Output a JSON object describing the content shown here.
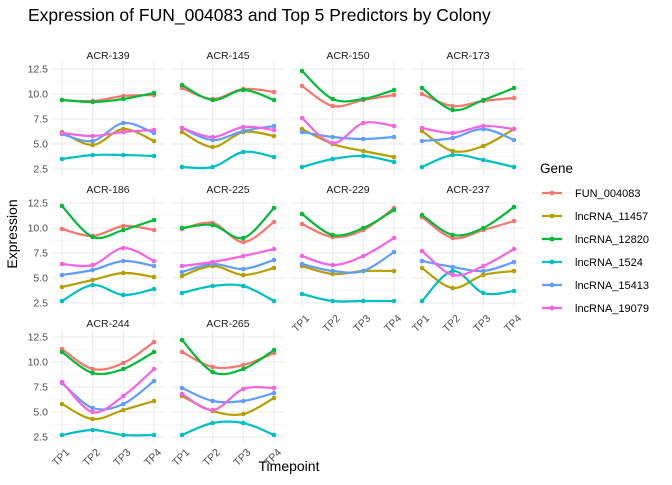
{
  "chart_data": {
    "type": "line",
    "title": "Expression of FUN_004083 and Top 5 Predictors by Colony",
    "xlabel": "Timepoint",
    "ylabel": "Expression",
    "legend_title": "Gene",
    "legend_position": "right",
    "grid": true,
    "facet_layout": "wrap 4 columns",
    "ylim": [
      2.0,
      13.2
    ],
    "y_ticks": [
      "2.5",
      "5.0",
      "7.5",
      "10.0",
      "12.5"
    ],
    "y_tick_values": [
      2.5,
      5.0,
      7.5,
      10.0,
      12.5
    ],
    "x_categories": [
      "TP1",
      "TP2",
      "TP3",
      "TP4"
    ],
    "genes": [
      {
        "name": "FUN_004083",
        "color": "#F8766D"
      },
      {
        "name": "lncRNA_11457",
        "color": "#B79F00"
      },
      {
        "name": "lncRNA_12820",
        "color": "#00BA38"
      },
      {
        "name": "lncRNA_1524",
        "color": "#00BFC4"
      },
      {
        "name": "lncRNA_15413",
        "color": "#619CFF"
      },
      {
        "name": "lncRNA_19079",
        "color": "#F564E3"
      }
    ],
    "panels": [
      {
        "colony": "ACR-139",
        "series": [
          {
            "gene": "FUN_004083",
            "values": [
              9.4,
              9.3,
              9.8,
              9.9
            ]
          },
          {
            "gene": "lncRNA_11457",
            "values": [
              6.2,
              4.9,
              6.5,
              5.3
            ]
          },
          {
            "gene": "lncRNA_12820",
            "values": [
              9.4,
              9.2,
              9.5,
              10.1
            ]
          },
          {
            "gene": "lncRNA_1524",
            "values": [
              3.5,
              3.9,
              3.9,
              3.8
            ]
          },
          {
            "gene": "lncRNA_15413",
            "values": [
              6.0,
              5.3,
              7.1,
              6.1
            ]
          },
          {
            "gene": "lncRNA_19079",
            "values": [
              6.1,
              5.8,
              6.2,
              6.4
            ]
          }
        ]
      },
      {
        "colony": "ACR-145",
        "series": [
          {
            "gene": "FUN_004083",
            "values": [
              10.6,
              9.5,
              10.5,
              10.2
            ]
          },
          {
            "gene": "lncRNA_11457",
            "values": [
              6.2,
              4.7,
              6.2,
              5.8
            ]
          },
          {
            "gene": "lncRNA_12820",
            "values": [
              10.9,
              9.4,
              10.4,
              9.4
            ]
          },
          {
            "gene": "lncRNA_1524",
            "values": [
              2.7,
              2.7,
              4.2,
              3.7
            ]
          },
          {
            "gene": "lncRNA_15413",
            "values": [
              6.6,
              5.4,
              6.3,
              6.8
            ]
          },
          {
            "gene": "lncRNA_19079",
            "values": [
              6.6,
              5.7,
              6.7,
              6.4
            ]
          }
        ]
      },
      {
        "colony": "ACR-150",
        "series": [
          {
            "gene": "FUN_004083",
            "values": [
              10.8,
              8.8,
              9.4,
              9.9
            ]
          },
          {
            "gene": "lncRNA_11457",
            "values": [
              6.5,
              5.0,
              4.3,
              3.7
            ]
          },
          {
            "gene": "lncRNA_12820",
            "values": [
              12.3,
              9.5,
              9.5,
              10.4
            ]
          },
          {
            "gene": "lncRNA_1524",
            "values": [
              2.7,
              3.5,
              3.8,
              3.2
            ]
          },
          {
            "gene": "lncRNA_15413",
            "values": [
              6.2,
              5.7,
              5.5,
              5.7
            ]
          },
          {
            "gene": "lncRNA_19079",
            "values": [
              7.6,
              5.1,
              7.1,
              6.8
            ]
          }
        ]
      },
      {
        "colony": "ACR-173",
        "series": [
          {
            "gene": "FUN_004083",
            "values": [
              10.0,
              8.8,
              9.3,
              9.6
            ]
          },
          {
            "gene": "lncRNA_11457",
            "values": [
              6.3,
              4.3,
              4.8,
              6.5
            ]
          },
          {
            "gene": "lncRNA_12820",
            "values": [
              10.6,
              8.4,
              9.4,
              10.6
            ]
          },
          {
            "gene": "lncRNA_1524",
            "values": [
              2.7,
              3.9,
              3.4,
              2.7
            ]
          },
          {
            "gene": "lncRNA_15413",
            "values": [
              5.3,
              5.6,
              6.5,
              5.4
            ]
          },
          {
            "gene": "lncRNA_19079",
            "values": [
              6.6,
              6.1,
              6.8,
              6.5
            ]
          }
        ]
      },
      {
        "colony": "ACR-186",
        "series": [
          {
            "gene": "FUN_004083",
            "values": [
              9.9,
              9.2,
              10.2,
              9.8
            ]
          },
          {
            "gene": "lncRNA_11457",
            "values": [
              4.1,
              4.8,
              5.5,
              5.1
            ]
          },
          {
            "gene": "lncRNA_12820",
            "values": [
              12.2,
              9.1,
              9.8,
              10.8
            ]
          },
          {
            "gene": "lncRNA_1524",
            "values": [
              2.7,
              4.3,
              3.3,
              3.9
            ]
          },
          {
            "gene": "lncRNA_15413",
            "values": [
              5.3,
              5.8,
              6.7,
              6.2
            ]
          },
          {
            "gene": "lncRNA_19079",
            "values": [
              6.4,
              6.3,
              8.0,
              6.7
            ]
          }
        ]
      },
      {
        "colony": "ACR-225",
        "series": [
          {
            "gene": "FUN_004083",
            "values": [
              9.9,
              10.5,
              8.6,
              10.6
            ]
          },
          {
            "gene": "lncRNA_11457",
            "values": [
              5.2,
              6.2,
              5.3,
              6.0
            ]
          },
          {
            "gene": "lncRNA_12820",
            "values": [
              10.0,
              10.3,
              9.0,
              12.0
            ]
          },
          {
            "gene": "lncRNA_1524",
            "values": [
              3.5,
              4.2,
              4.2,
              2.7
            ]
          },
          {
            "gene": "lncRNA_15413",
            "values": [
              5.6,
              6.4,
              5.9,
              6.8
            ]
          },
          {
            "gene": "lncRNA_19079",
            "values": [
              6.2,
              6.6,
              7.2,
              7.9
            ]
          }
        ]
      },
      {
        "colony": "ACR-229",
        "series": [
          {
            "gene": "FUN_004083",
            "values": [
              10.4,
              9.1,
              9.8,
              12.0
            ]
          },
          {
            "gene": "lncRNA_11457",
            "values": [
              6.2,
              5.4,
              5.7,
              5.7
            ]
          },
          {
            "gene": "lncRNA_12820",
            "values": [
              11.4,
              9.3,
              10.0,
              11.8
            ]
          },
          {
            "gene": "lncRNA_1524",
            "values": [
              3.4,
              2.7,
              2.7,
              2.7
            ]
          },
          {
            "gene": "lncRNA_15413",
            "values": [
              6.4,
              5.7,
              5.7,
              7.6
            ]
          },
          {
            "gene": "lncRNA_19079",
            "values": [
              7.2,
              6.3,
              7.2,
              9.0
            ]
          }
        ]
      },
      {
        "colony": "ACR-237",
        "series": [
          {
            "gene": "FUN_004083",
            "values": [
              11.1,
              9.0,
              9.8,
              10.7
            ]
          },
          {
            "gene": "lncRNA_11457",
            "values": [
              6.0,
              4.0,
              5.3,
              5.7
            ]
          },
          {
            "gene": "lncRNA_12820",
            "values": [
              11.3,
              9.3,
              10.0,
              12.1
            ]
          },
          {
            "gene": "lncRNA_1524",
            "values": [
              2.7,
              5.7,
              3.5,
              3.7
            ]
          },
          {
            "gene": "lncRNA_15413",
            "values": [
              6.7,
              6.1,
              5.7,
              6.6
            ]
          },
          {
            "gene": "lncRNA_19079",
            "values": [
              7.7,
              5.3,
              6.2,
              7.9
            ]
          }
        ]
      },
      {
        "colony": "ACR-244",
        "series": [
          {
            "gene": "FUN_004083",
            "values": [
              11.3,
              9.3,
              9.9,
              12.0
            ]
          },
          {
            "gene": "lncRNA_11457",
            "values": [
              5.8,
              4.3,
              5.2,
              6.1
            ]
          },
          {
            "gene": "lncRNA_12820",
            "values": [
              11.0,
              8.9,
              9.3,
              11.0
            ]
          },
          {
            "gene": "lncRNA_1524",
            "values": [
              2.7,
              3.2,
              2.7,
              2.7
            ]
          },
          {
            "gene": "lncRNA_15413",
            "values": [
              7.9,
              5.4,
              5.8,
              8.1
            ]
          },
          {
            "gene": "lncRNA_19079",
            "values": [
              8.0,
              5.0,
              6.6,
              9.3
            ]
          }
        ]
      },
      {
        "colony": "ACR-265",
        "series": [
          {
            "gene": "FUN_004083",
            "values": [
              11.0,
              9.5,
              9.7,
              10.9
            ]
          },
          {
            "gene": "lncRNA_11457",
            "values": [
              6.6,
              5.1,
              4.8,
              6.4
            ]
          },
          {
            "gene": "lncRNA_12820",
            "values": [
              12.2,
              9.0,
              9.3,
              11.2
            ]
          },
          {
            "gene": "lncRNA_1524",
            "values": [
              2.7,
              3.9,
              3.9,
              2.7
            ]
          },
          {
            "gene": "lncRNA_15413",
            "values": [
              7.4,
              6.1,
              6.1,
              6.9
            ]
          },
          {
            "gene": "lncRNA_19079",
            "values": [
              6.8,
              5.2,
              7.3,
              7.4
            ]
          }
        ]
      }
    ]
  }
}
